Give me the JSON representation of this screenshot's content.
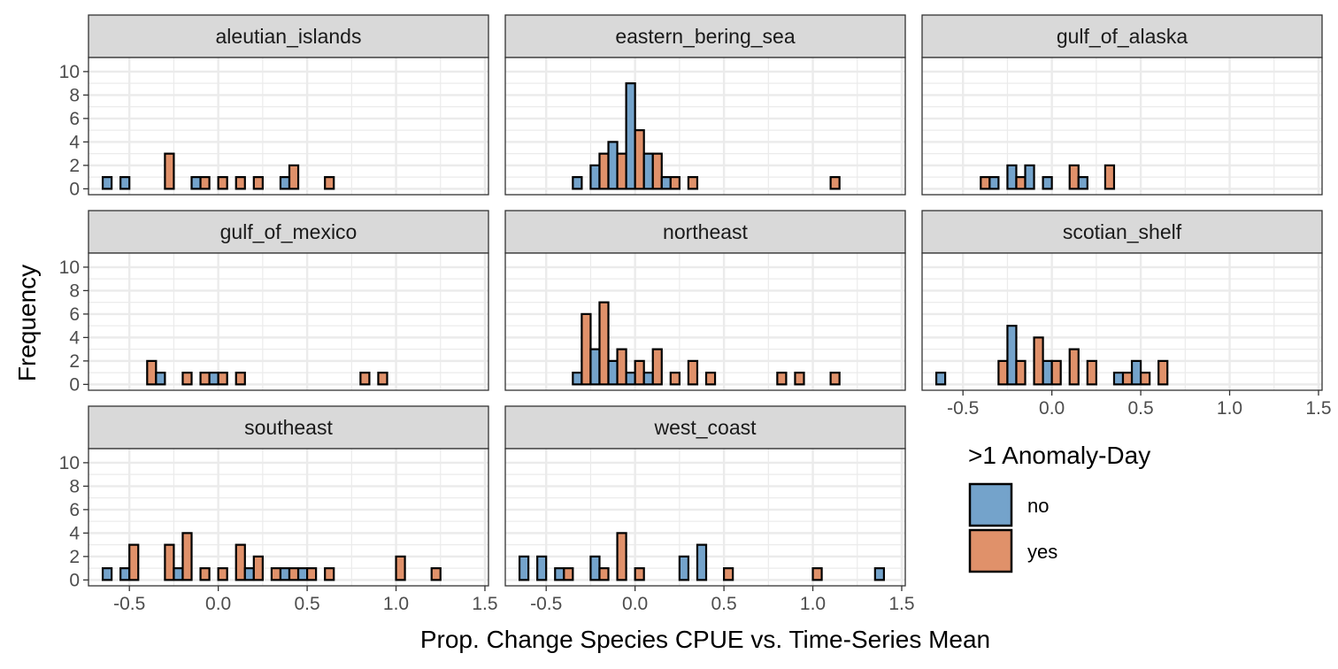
{
  "chart_data": {
    "type": "bar",
    "layout": "faceted histogram (dodged)",
    "xlabel": "Prop. Change Species CPUE vs. Time-Series Mean",
    "ylabel": "Frequency",
    "xlim": [
      -0.73,
      1.52
    ],
    "ylim": [
      0,
      10
    ],
    "x_ticks": [
      -0.5,
      0.0,
      0.5,
      1.0,
      1.5
    ],
    "x_tick_labels": [
      "-0.5",
      "0.0",
      "0.5",
      "1.0",
      "1.5"
    ],
    "y_ticks": [
      0,
      2,
      4,
      6,
      8,
      10
    ],
    "y_tick_labels": [
      "0",
      "2",
      "4",
      "6",
      "8",
      "10"
    ],
    "bin_width": 0.1,
    "bin_centers_start": -0.6,
    "bin_count": 21,
    "grid": true,
    "legend": {
      "title": ">1 Anomaly-Day",
      "placement": "bottom-right",
      "entries": [
        {
          "name": "no",
          "color": "#74A3CB"
        },
        {
          "name": "yes",
          "color": "#E0916A"
        }
      ]
    },
    "colors": {
      "no": "#74A3CB",
      "yes": "#E0916A",
      "strip": "#D9D9D9",
      "grid": "#EBEBEB"
    },
    "panels": [
      {
        "name": "aleutian_islands",
        "no": [
          1,
          1,
          0,
          0,
          0,
          1,
          0,
          0,
          0,
          0,
          1,
          0,
          0,
          0,
          0,
          0,
          0,
          0,
          0,
          0,
          0
        ],
        "yes": [
          0,
          0,
          0,
          3,
          0,
          1,
          1,
          1,
          1,
          0,
          2,
          0,
          1,
          0,
          0,
          0,
          0,
          0,
          0,
          0,
          0
        ]
      },
      {
        "name": "eastern_bering_sea",
        "no": [
          0,
          0,
          0,
          1,
          2,
          4,
          9,
          3,
          1,
          0,
          0,
          0,
          0,
          0,
          0,
          0,
          0,
          0,
          0,
          0,
          0
        ],
        "yes": [
          0,
          0,
          0,
          0,
          3,
          3,
          5,
          3,
          1,
          1,
          0,
          0,
          0,
          0,
          0,
          0,
          0,
          1,
          0,
          0,
          0
        ]
      },
      {
        "name": "gulf_of_alaska",
        "no": [
          0,
          0,
          0,
          1,
          2,
          2,
          1,
          0,
          1,
          0,
          0,
          0,
          0,
          0,
          0,
          0,
          0,
          0,
          0,
          0,
          0
        ],
        "yes": [
          0,
          0,
          1,
          0,
          1,
          0,
          0,
          2,
          0,
          2,
          0,
          0,
          0,
          0,
          0,
          0,
          0,
          0,
          0,
          0,
          0
        ]
      },
      {
        "name": "gulf_of_mexico",
        "no": [
          0,
          0,
          0,
          1,
          0,
          0,
          1,
          0,
          0,
          0,
          0,
          0,
          0,
          0,
          0,
          0,
          0,
          0,
          0,
          0,
          0
        ],
        "yes": [
          0,
          0,
          2,
          0,
          1,
          1,
          1,
          1,
          0,
          0,
          0,
          0,
          0,
          0,
          1,
          1,
          0,
          0,
          0,
          0,
          0
        ]
      },
      {
        "name": "northeast",
        "no": [
          0,
          0,
          0,
          1,
          3,
          2,
          1,
          1,
          0,
          0,
          0,
          0,
          0,
          0,
          0,
          0,
          0,
          0,
          0,
          0,
          0
        ],
        "yes": [
          0,
          0,
          0,
          6,
          7,
          3,
          2,
          3,
          1,
          2,
          1,
          0,
          0,
          0,
          1,
          1,
          0,
          1,
          0,
          0,
          0
        ]
      },
      {
        "name": "scotian_shelf",
        "no": [
          1,
          0,
          0,
          0,
          5,
          0,
          2,
          0,
          0,
          0,
          1,
          2,
          0,
          0,
          0,
          0,
          0,
          0,
          0,
          0,
          0
        ],
        "yes": [
          0,
          0,
          0,
          2,
          2,
          4,
          2,
          3,
          2,
          0,
          1,
          1,
          2,
          0,
          0,
          0,
          0,
          0,
          0,
          0,
          0
        ]
      },
      {
        "name": "southeast",
        "no": [
          1,
          1,
          0,
          0,
          1,
          0,
          0,
          0,
          1,
          0,
          1,
          1,
          0,
          0,
          0,
          0,
          0,
          0,
          0,
          0,
          0
        ],
        "yes": [
          0,
          3,
          0,
          3,
          4,
          1,
          1,
          3,
          2,
          1,
          1,
          1,
          1,
          0,
          0,
          0,
          2,
          0,
          1,
          0,
          0
        ]
      },
      {
        "name": "west_coast",
        "no": [
          2,
          2,
          1,
          0,
          2,
          0,
          0,
          0,
          0,
          2,
          3,
          0,
          0,
          0,
          0,
          0,
          0,
          0,
          0,
          0,
          1
        ],
        "yes": [
          0,
          0,
          1,
          0,
          1,
          4,
          1,
          0,
          0,
          0,
          0,
          1,
          0,
          0,
          0,
          0,
          1,
          0,
          0,
          0,
          0
        ]
      }
    ]
  }
}
